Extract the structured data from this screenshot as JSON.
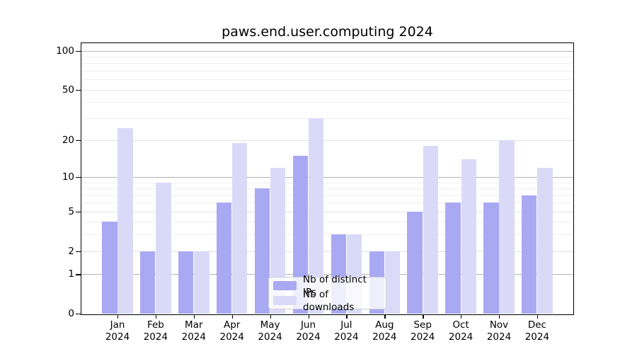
{
  "chart_data": {
    "type": "bar",
    "title": "paws.end.user.computing 2024",
    "year": "2024",
    "categories": [
      "Jan",
      "Feb",
      "Mar",
      "Apr",
      "May",
      "Jun",
      "Jul",
      "Aug",
      "Sep",
      "Oct",
      "Nov",
      "Dec"
    ],
    "series": [
      {
        "name": "Nb of distinct IPs",
        "color": "#a9a9f3",
        "values": [
          4,
          2,
          2,
          6,
          8,
          15,
          3,
          2,
          5,
          6,
          6,
          7
        ]
      },
      {
        "name": "Nb of downloads",
        "color": "#dadaf8",
        "values": [
          25,
          9,
          2,
          19,
          12,
          30,
          3,
          2,
          18,
          14,
          20,
          12
        ]
      }
    ],
    "xlabel": "",
    "ylabel": "",
    "yscale": "log1p",
    "y_ticks": [
      0,
      1,
      2,
      5,
      10,
      20,
      50,
      100
    ],
    "major_gridline_values": [
      1,
      10,
      100
    ],
    "minor_gridline_values": [
      3,
      4,
      6,
      7,
      8,
      9,
      30,
      40,
      60,
      70,
      80,
      90
    ],
    "ylim": [
      0,
      113
    ],
    "grid": true,
    "legend_position": "lower center",
    "colors": {
      "major_grid": "#b4b4b4",
      "tick_grid": "#e2e2e2",
      "minor_grid": "#efefef",
      "axis": "#000000",
      "background": "#ffffff"
    }
  }
}
